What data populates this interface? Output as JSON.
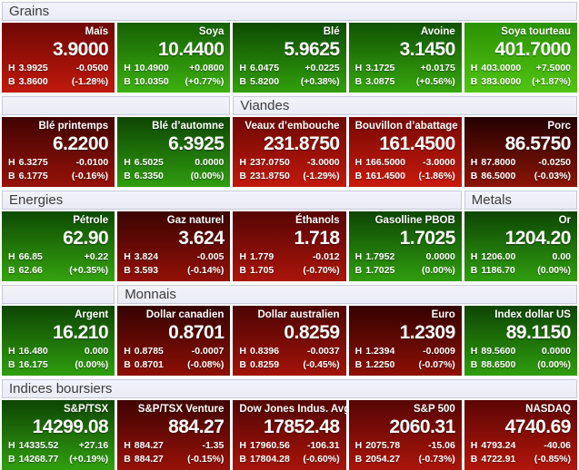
{
  "labels": {
    "high": "H",
    "low": "B"
  },
  "sections": [
    {
      "headers": [
        {
          "label": "Grains",
          "span": 5
        }
      ],
      "tiles": [
        {
          "name": "Maïs",
          "price": "3.9000",
          "high": "3.9925",
          "change": "-0.0500",
          "low": "3.8600",
          "change_pct": "(-1.28%)",
          "trend": "down",
          "grad_top": "#6e0703",
          "grad_bottom": "#c2190c"
        },
        {
          "name": "Soya",
          "price": "10.4400",
          "high": "10.4900",
          "change": "+0.0800",
          "low": "10.0350",
          "change_pct": "(+0.77%)",
          "trend": "up",
          "grad_top": "#156004",
          "grad_bottom": "#3db10f"
        },
        {
          "name": "Blé",
          "price": "5.9625",
          "high": "6.0475",
          "change": "+0.0225",
          "low": "5.8200",
          "change_pct": "(+0.38%)",
          "trend": "up",
          "grad_top": "#0d4a03",
          "grad_bottom": "#32a00c"
        },
        {
          "name": "Avoine",
          "price": "3.1450",
          "high": "3.1725",
          "change": "+0.0175",
          "low": "3.0875",
          "change_pct": "(+0.56%)",
          "trend": "up",
          "grad_top": "#115203",
          "grad_bottom": "#37a80d"
        },
        {
          "name": "Soya tourteau",
          "price": "401.7000",
          "high": "403.0000",
          "change": "+7.5000",
          "low": "383.0000",
          "change_pct": "(+1.87%)",
          "trend": "up",
          "grad_top": "#2a9203",
          "grad_bottom": "#52c513"
        }
      ]
    },
    {
      "headers": [
        {
          "label": "",
          "span": 2
        },
        {
          "label": "Viandes",
          "span": 3
        }
      ],
      "tiles": [
        {
          "name": "Blé printemps",
          "price": "6.2200",
          "high": "6.3275",
          "change": "-0.0100",
          "low": "6.1775",
          "change_pct": "(-0.16%)",
          "trend": "down",
          "grad_top": "#400303",
          "grad_bottom": "#971208"
        },
        {
          "name": "Blé d’automne",
          "price": "6.3925",
          "high": "6.5025",
          "change": "0.0000",
          "low": "6.3350",
          "change_pct": "(0.00%)",
          "trend": "flat",
          "grad_top": "#0e4504",
          "grad_bottom": "#2f9e0e"
        },
        {
          "name": "Veaux d’embouche",
          "price": "231.8750",
          "high": "237.0750",
          "change": "-3.0000",
          "low": "231.8750",
          "change_pct": "(-1.29%)",
          "trend": "down",
          "grad_top": "#6e0703",
          "grad_bottom": "#c2190c"
        },
        {
          "name": "Bouvillon d’abattage",
          "price": "161.4500",
          "high": "166.5000",
          "change": "-3.0000",
          "low": "161.4500",
          "change_pct": "(-1.86%)",
          "trend": "down",
          "grad_top": "#760804",
          "grad_bottom": "#c91b0d"
        },
        {
          "name": "Porc",
          "price": "86.5750",
          "high": "87.8000",
          "change": "-0.0250",
          "low": "86.5000",
          "change_pct": "(-0.03%)",
          "trend": "down",
          "grad_top": "#240100",
          "grad_bottom": "#8c1507"
        }
      ]
    },
    {
      "headers": [
        {
          "label": "Energies",
          "span": 4
        },
        {
          "label": "Metals",
          "span": 1
        }
      ],
      "tiles": [
        {
          "name": "Pétrole",
          "price": "62.90",
          "high": "66.85",
          "change": "+0.22",
          "low": "62.66",
          "change_pct": "(+0.35%)",
          "trend": "up",
          "grad_top": "#0d4a03",
          "grad_bottom": "#35a30e"
        },
        {
          "name": "Gaz naturel",
          "price": "3.624",
          "high": "3.824",
          "change": "-0.005",
          "low": "3.593",
          "change_pct": "(-0.14%)",
          "trend": "down",
          "grad_top": "#3b0302",
          "grad_bottom": "#931106"
        },
        {
          "name": "Éthanols",
          "price": "1.718",
          "high": "1.779",
          "change": "-0.012",
          "low": "1.705",
          "change_pct": "(-0.70%)",
          "trend": "down",
          "grad_top": "#560504",
          "grad_bottom": "#ab150b"
        },
        {
          "name": "Gasolline PBOB",
          "price": "1.7025",
          "high": "1.7952",
          "change": "0.0000",
          "low": "1.7025",
          "change_pct": "(0.00%)",
          "trend": "flat",
          "grad_top": "#0e4504",
          "grad_bottom": "#2f9e0e"
        },
        {
          "name": "Or",
          "price": "1204.20",
          "high": "1206.00",
          "change": "0.00",
          "low": "1186.70",
          "change_pct": "(0.00%)",
          "trend": "flat",
          "grad_top": "#0e4504",
          "grad_bottom": "#2f9e0e"
        }
      ]
    },
    {
      "headers": [
        {
          "label": "",
          "span": 1
        },
        {
          "label": "Monnais",
          "span": 4
        }
      ],
      "tiles": [
        {
          "name": "Argent",
          "price": "16.210",
          "high": "16.480",
          "change": "0.000",
          "low": "16.175",
          "change_pct": "(0.00%)",
          "trend": "flat",
          "grad_top": "#0e4504",
          "grad_bottom": "#2f9e0e"
        },
        {
          "name": "Dollar canadien",
          "price": "0.8701",
          "high": "0.8785",
          "change": "-0.0007",
          "low": "0.8701",
          "change_pct": "(-0.08%)",
          "trend": "down",
          "grad_top": "#350202",
          "grad_bottom": "#8e1005"
        },
        {
          "name": "Dollar australien",
          "price": "0.8259",
          "high": "0.8396",
          "change": "-0.0037",
          "low": "0.8259",
          "change_pct": "(-0.45%)",
          "trend": "down",
          "grad_top": "#4d0403",
          "grad_bottom": "#a31309"
        },
        {
          "name": "Euro",
          "price": "1.2309",
          "high": "1.2394",
          "change": "-0.0009",
          "low": "1.2250",
          "change_pct": "(-0.07%)",
          "trend": "down",
          "grad_top": "#350202",
          "grad_bottom": "#8e1005"
        },
        {
          "name": "Index dollar US",
          "price": "89.1150",
          "high": "89.5600",
          "change": "0.0000",
          "low": "88.6500",
          "change_pct": "(0.00%)",
          "trend": "flat",
          "grad_top": "#0e4504",
          "grad_bottom": "#2f9e0e"
        }
      ]
    },
    {
      "headers": [
        {
          "label": "Indices boursiers",
          "span": 5
        }
      ],
      "tiles": [
        {
          "name": "S&P/TSX",
          "price": "14299.08",
          "high": "14335.52",
          "change": "+27.16",
          "low": "14268.77",
          "change_pct": "(+0.19%)",
          "trend": "up",
          "grad_top": "#0e4504",
          "grad_bottom": "#319f0f"
        },
        {
          "name": "S&P/TSX Venture",
          "price": "884.27",
          "high": "884.27",
          "change": "-1.35",
          "low": "884.27",
          "change_pct": "(-0.15%)",
          "trend": "down",
          "grad_top": "#400303",
          "grad_bottom": "#971208"
        },
        {
          "name": "Dow Jones Indus. Avg.",
          "price": "17852.48",
          "high": "17960.56",
          "change": "-106.31",
          "low": "17804.28",
          "change_pct": "(-0.60%)",
          "trend": "down",
          "grad_top": "#520504",
          "grad_bottom": "#a8140a"
        },
        {
          "name": "S&P 500",
          "price": "2060.31",
          "high": "2075.78",
          "change": "-15.06",
          "low": "2054.27",
          "change_pct": "(-0.73%)",
          "trend": "down",
          "grad_top": "#560504",
          "grad_bottom": "#ab150b"
        },
        {
          "name": "NASDAQ",
          "price": "4740.69",
          "high": "4793.24",
          "change": "-40.06",
          "low": "4722.91",
          "change_pct": "(-0.85%)",
          "trend": "down",
          "grad_top": "#5c0604",
          "grad_bottom": "#b2160c"
        }
      ]
    }
  ]
}
